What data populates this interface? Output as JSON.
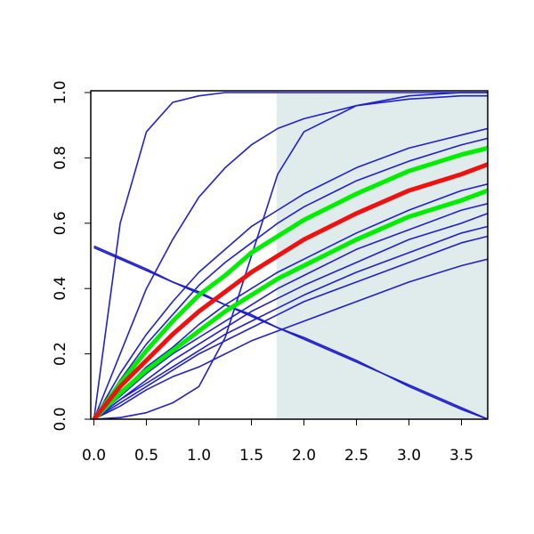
{
  "chart_data": {
    "type": "line",
    "x": [
      0,
      0.25,
      0.5,
      0.75,
      1,
      1.25,
      1.5,
      1.75,
      2,
      2.5,
      3,
      3.5,
      3.75
    ],
    "xlim": [
      -0.03,
      3.75
    ],
    "ylim": [
      0,
      1
    ],
    "xticks": [
      {
        "value": 0,
        "label": "0.0"
      },
      {
        "value": 0.5,
        "label": "0.5"
      },
      {
        "value": 1,
        "label": "1.0"
      },
      {
        "value": 1.5,
        "label": "1.5"
      },
      {
        "value": 2,
        "label": "2.0"
      },
      {
        "value": 2.5,
        "label": "2.5"
      },
      {
        "value": 3,
        "label": "3.0"
      },
      {
        "value": 3.5,
        "label": "3.5"
      }
    ],
    "yticks": [
      {
        "value": 0,
        "label": "0.0"
      },
      {
        "value": 0.2,
        "label": "0.2"
      },
      {
        "value": 0.4,
        "label": "0.4"
      },
      {
        "value": 0.6,
        "label": "0.6"
      },
      {
        "value": 0.8,
        "label": "0.8"
      },
      {
        "value": 1,
        "label": "1.0"
      }
    ],
    "shaded_region": {
      "xmin": 1.74,
      "xmax": 3.75,
      "color": "#e0ecec"
    },
    "series": [
      {
        "color": "#1f1fd0",
        "line_width": 1.6,
        "values": [
          0,
          0.6,
          0.88,
          0.97,
          0.99,
          1,
          1,
          1,
          1,
          1,
          1,
          1,
          1
        ]
      },
      {
        "color": "#1f1fd0",
        "line_width": 1.6,
        "values": [
          0,
          0.2,
          0.4,
          0.55,
          0.68,
          0.77,
          0.84,
          0.89,
          0.92,
          0.96,
          0.98,
          0.99,
          0.99
        ]
      },
      {
        "color": "#1f1fd0",
        "line_width": 1.6,
        "values": [
          0,
          0.005,
          0.02,
          0.05,
          0.1,
          0.25,
          0.5,
          0.75,
          0.88,
          0.96,
          0.99,
          1,
          1
        ]
      },
      {
        "color": "#1f1fd0",
        "line_width": 1.6,
        "values": [
          0.53,
          0.495,
          0.46,
          0.42,
          0.39,
          0.35,
          0.32,
          0.28,
          0.25,
          0.18,
          0.1,
          0.03,
          0
        ]
      },
      {
        "color": "#1f1fd0",
        "line_width": 1.6,
        "values": [
          0.525,
          0.49,
          0.455,
          0.42,
          0.385,
          0.35,
          0.315,
          0.28,
          0.245,
          0.175,
          0.105,
          0.035,
          0
        ]
      },
      {
        "color": "#1f1fd0",
        "line_width": 1.6,
        "values": [
          0,
          0.14,
          0.26,
          0.36,
          0.45,
          0.52,
          0.59,
          0.64,
          0.69,
          0.77,
          0.83,
          0.87,
          0.89
        ]
      },
      {
        "color": "#1f1fd0",
        "line_width": 1.6,
        "values": [
          0,
          0.12,
          0.23,
          0.32,
          0.41,
          0.48,
          0.54,
          0.6,
          0.65,
          0.73,
          0.79,
          0.84,
          0.86
        ]
      },
      {
        "color": "#1f1fd0",
        "line_width": 1.6,
        "values": [
          0,
          0.08,
          0.16,
          0.22,
          0.29,
          0.35,
          0.4,
          0.45,
          0.49,
          0.57,
          0.64,
          0.7,
          0.72
        ]
      },
      {
        "color": "#1f1fd0",
        "line_width": 1.6,
        "values": [
          0,
          0.07,
          0.14,
          0.2,
          0.25,
          0.3,
          0.35,
          0.4,
          0.44,
          0.52,
          0.58,
          0.64,
          0.66
        ]
      },
      {
        "color": "#1f1fd0",
        "line_width": 1.6,
        "values": [
          0,
          0.06,
          0.12,
          0.18,
          0.23,
          0.28,
          0.33,
          0.37,
          0.41,
          0.48,
          0.55,
          0.6,
          0.63
        ]
      },
      {
        "color": "#1f1fd0",
        "line_width": 1.6,
        "values": [
          0,
          0.06,
          0.11,
          0.16,
          0.21,
          0.26,
          0.3,
          0.34,
          0.38,
          0.45,
          0.51,
          0.57,
          0.59
        ]
      },
      {
        "color": "#1f1fd0",
        "line_width": 1.6,
        "values": [
          0,
          0.05,
          0.1,
          0.15,
          0.2,
          0.24,
          0.28,
          0.32,
          0.36,
          0.42,
          0.48,
          0.54,
          0.56
        ]
      },
      {
        "color": "#1f1fd0",
        "line_width": 1.6,
        "values": [
          0,
          0.04,
          0.09,
          0.13,
          0.16,
          0.2,
          0.24,
          0.27,
          0.3,
          0.36,
          0.42,
          0.47,
          0.49
        ]
      },
      {
        "color": "#00ee00",
        "line_width": 5,
        "values": [
          0,
          0.11,
          0.21,
          0.3,
          0.38,
          0.44,
          0.51,
          0.56,
          0.61,
          0.69,
          0.76,
          0.81,
          0.83
        ]
      },
      {
        "color": "#00ee00",
        "line_width": 5,
        "values": [
          0,
          0.08,
          0.15,
          0.21,
          0.27,
          0.33,
          0.38,
          0.43,
          0.47,
          0.55,
          0.62,
          0.67,
          0.7
        ]
      },
      {
        "color": "#ee1111",
        "line_width": 5,
        "values": [
          0,
          0.1,
          0.18,
          0.26,
          0.33,
          0.39,
          0.45,
          0.5,
          0.55,
          0.63,
          0.7,
          0.75,
          0.78
        ]
      }
    ]
  }
}
